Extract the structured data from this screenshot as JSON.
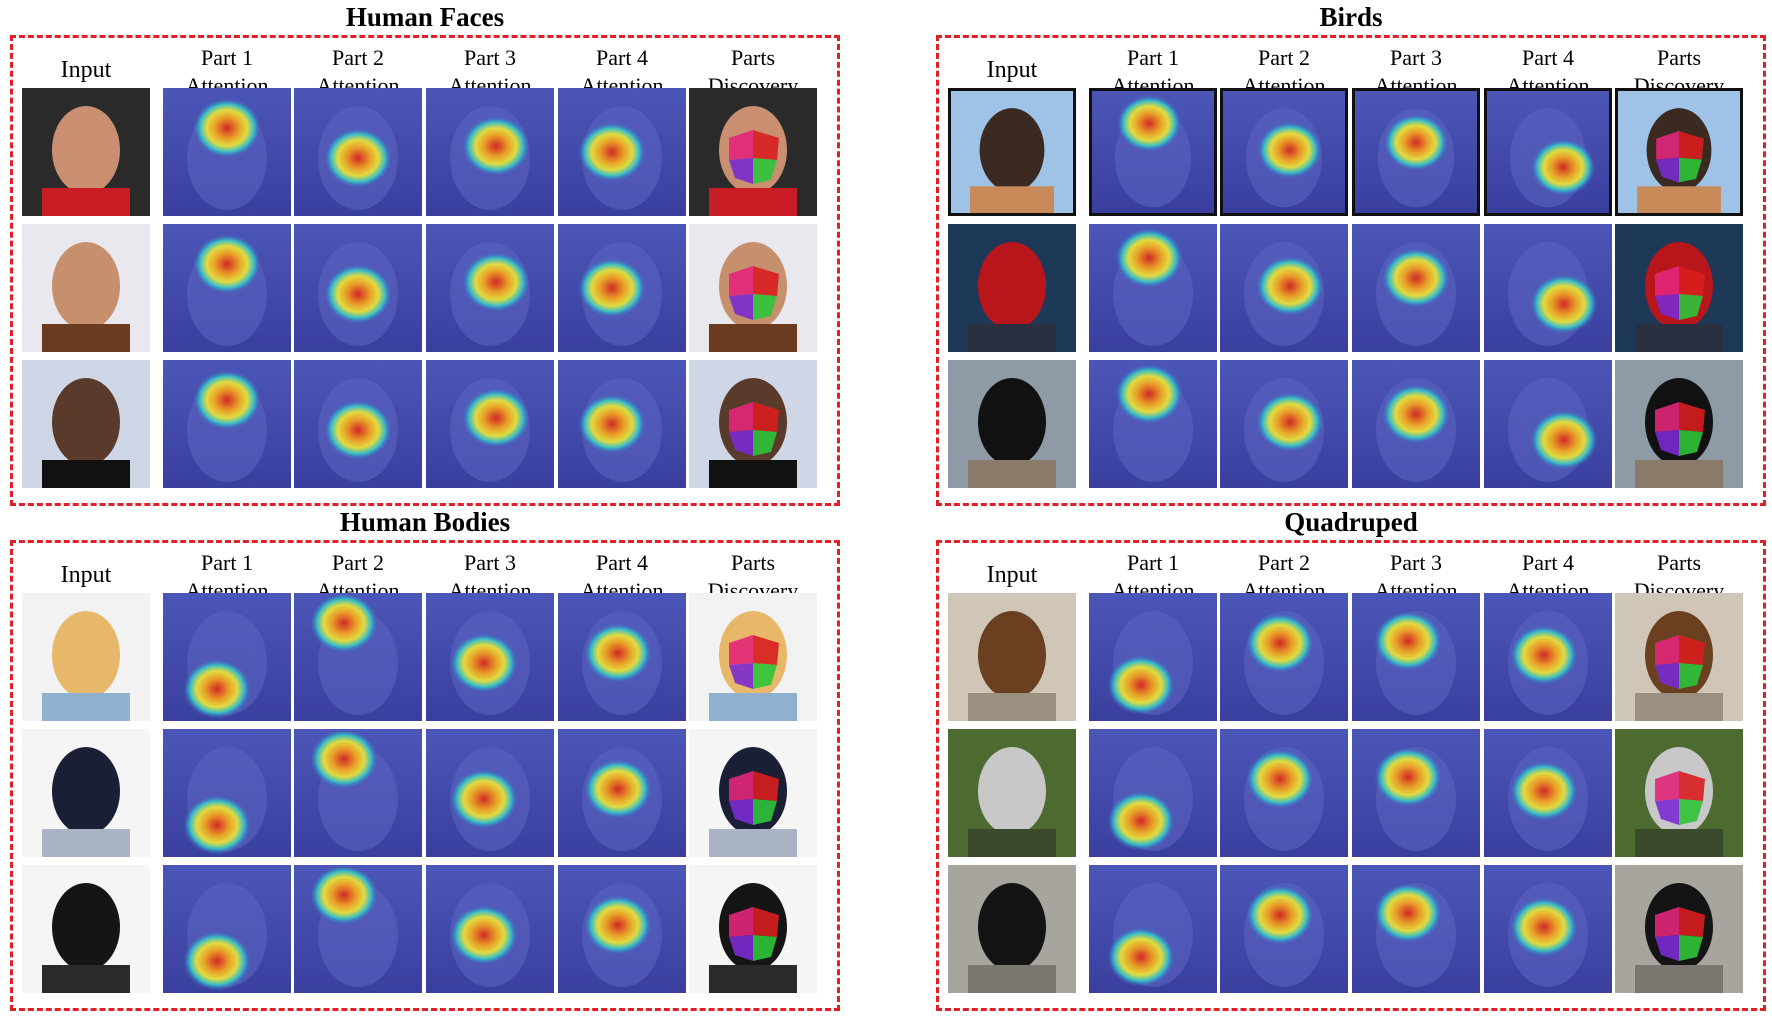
{
  "columns": {
    "input": "Input",
    "part1": [
      "Part 1",
      "Attention"
    ],
    "part2": [
      "Part 2",
      "Attention"
    ],
    "part3": [
      "Part 3",
      "Attention"
    ],
    "part4": [
      "Part 4",
      "Attention"
    ],
    "parts": [
      "Parts",
      "Discovery"
    ]
  },
  "panels": [
    {
      "id": "faces",
      "title": "Human Faces"
    },
    {
      "id": "birds",
      "title": "Birds"
    },
    {
      "id": "bodies",
      "title": "Human Bodies"
    },
    {
      "id": "quadruped",
      "title": "Quadruped"
    }
  ],
  "colors": {
    "border": "#e11f26",
    "attention_bg": "#4a4fb0"
  }
}
